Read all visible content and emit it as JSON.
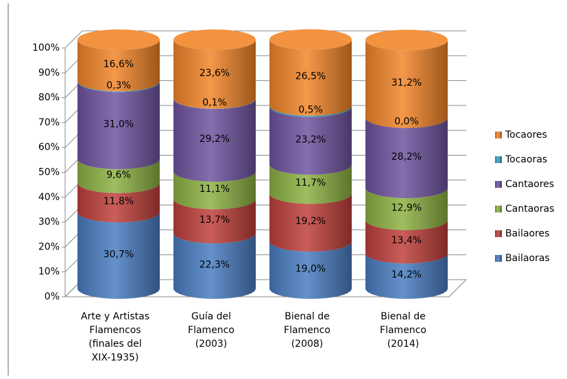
{
  "chart_data": {
    "type": "bar",
    "stacked": true,
    "shape": "cylinder",
    "categories": [
      [
        "Arte y Artistas",
        "Flamencos",
        "(finales del",
        "XIX-1935)"
      ],
      [
        "Guía del",
        "Flamenco",
        "(2003)"
      ],
      [
        "Bienal de",
        "Flamenco",
        "(2008)"
      ],
      [
        "Bienal de",
        "Flamenco",
        "(2014)"
      ]
    ],
    "series": [
      {
        "name": "Bailaoras",
        "color": "#4a7ec2",
        "values": [
          30.7,
          22.3,
          19.0,
          14.2
        ],
        "value_labels": [
          "30,7%",
          "22,3%",
          "19,0%",
          "14,2%"
        ]
      },
      {
        "name": "Bailaores",
        "color": "#c0403c",
        "values": [
          11.8,
          13.7,
          19.2,
          13.4
        ],
        "value_labels": [
          "11,8%",
          "13,7%",
          "19,2%",
          "13,4%"
        ]
      },
      {
        "name": "Cantaoras",
        "color": "#8db344",
        "values": [
          9.6,
          11.1,
          11.7,
          12.9
        ],
        "value_labels": [
          "9,6%",
          "11,1%",
          "11,7%",
          "12,9%"
        ]
      },
      {
        "name": "Cantaores",
        "color": "#7154a0",
        "values": [
          31.0,
          29.2,
          23.2,
          28.2
        ],
        "value_labels": [
          "31,0%",
          "29,2%",
          "23,2%",
          "28,2%"
        ]
      },
      {
        "name": "Tocaoras",
        "color": "#3ba3bf",
        "values": [
          0.3,
          0.1,
          0.5,
          0.0
        ],
        "value_labels": [
          "0,3%",
          "0,1%",
          "0,5%",
          "0,0%"
        ]
      },
      {
        "name": "Tocaores",
        "color": "#f2862a",
        "values": [
          16.6,
          23.6,
          26.5,
          31.2
        ],
        "value_labels": [
          "16,6%",
          "23,6%",
          "26,5%",
          "31,2%"
        ]
      }
    ],
    "ylim": [
      0,
      100
    ],
    "yticks": [
      {
        "value": 0,
        "label": "0%"
      },
      {
        "value": 10,
        "label": "10%"
      },
      {
        "value": 20,
        "label": "20%"
      },
      {
        "value": 30,
        "label": "30%"
      },
      {
        "value": 40,
        "label": "40%"
      },
      {
        "value": 50,
        "label": "50%"
      },
      {
        "value": 60,
        "label": "60%"
      },
      {
        "value": 70,
        "label": "70%"
      },
      {
        "value": 80,
        "label": "80%"
      },
      {
        "value": 90,
        "label": "90%"
      },
      {
        "value": 100,
        "label": "100%"
      }
    ],
    "grid": true,
    "legend": "right"
  }
}
